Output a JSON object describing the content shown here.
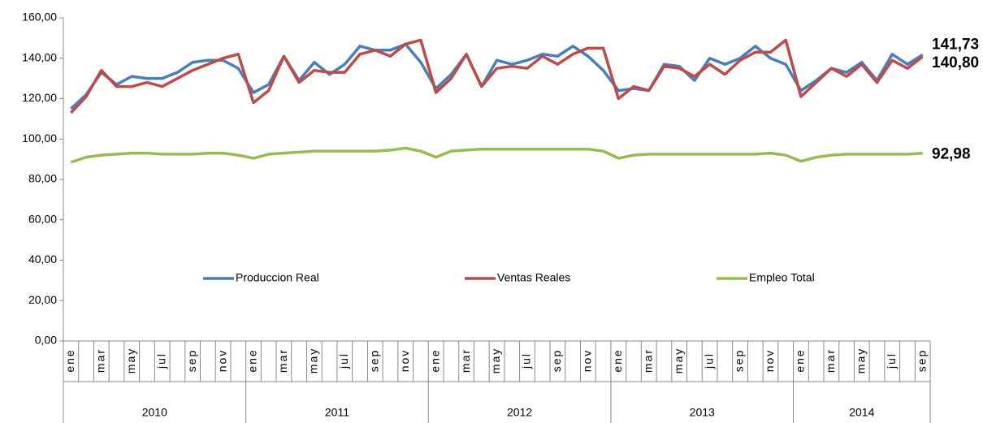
{
  "chart_data": {
    "type": "line",
    "categories": [
      "ene",
      null,
      "mar",
      null,
      "may",
      null,
      "jul",
      null,
      "sep",
      null,
      "nov",
      null,
      "ene",
      null,
      "mar",
      null,
      "may",
      null,
      "jul",
      null,
      "sep",
      null,
      "nov",
      null,
      "ene",
      null,
      "mar",
      null,
      "may",
      null,
      "jul",
      null,
      "sep",
      null,
      "nov",
      null,
      "ene",
      null,
      "mar",
      null,
      "may",
      null,
      "jul",
      null,
      "sep",
      null,
      "nov",
      null,
      "ene",
      null,
      "mar",
      null,
      "may",
      null,
      "jul",
      null,
      "sep"
    ],
    "years": [
      "2010",
      "2011",
      "2012",
      "2013",
      "2014"
    ],
    "series": [
      {
        "name": "Produccion Real",
        "color": "#4a7ebb",
        "values": [
          115,
          122,
          133,
          127,
          131,
          130,
          130,
          133,
          138,
          139,
          139,
          135,
          123,
          127,
          141,
          129,
          138,
          132,
          137,
          146,
          144,
          144,
          147,
          138,
          125,
          132,
          142,
          126,
          139,
          137,
          139,
          142,
          141,
          146,
          141,
          134,
          124,
          125,
          124,
          137,
          136,
          129,
          140,
          137,
          140,
          146,
          140,
          137,
          124,
          129,
          135,
          133,
          138,
          129,
          142,
          137,
          141.73
        ]
      },
      {
        "name": "Ventas Reales",
        "color": "#be4b48",
        "values": [
          113,
          121,
          134,
          126,
          126,
          128,
          126,
          130,
          134,
          137,
          140,
          142,
          118,
          124,
          141,
          128,
          134,
          133,
          133,
          142,
          144,
          141,
          147,
          149,
          123,
          130,
          142,
          126,
          135,
          136,
          135,
          141,
          137,
          142,
          145,
          145,
          120,
          126,
          124,
          136,
          135,
          131,
          137,
          132,
          139,
          143,
          143,
          149,
          121,
          128,
          135,
          131,
          137,
          128,
          139,
          135,
          140.8
        ]
      },
      {
        "name": "Empleo Total",
        "color": "#98b954",
        "values": [
          88.5,
          91,
          92,
          92.5,
          93,
          93,
          92.5,
          92.5,
          92.5,
          93,
          93,
          92,
          90.5,
          92.5,
          93,
          93.5,
          94,
          94,
          94,
          94,
          94,
          94.5,
          95.5,
          94,
          91,
          94,
          94.5,
          95,
          95,
          95,
          95,
          95,
          95,
          95,
          95,
          94,
          90.5,
          92,
          92.5,
          92.5,
          92.5,
          92.5,
          92.5,
          92.5,
          92.5,
          92.5,
          93,
          92,
          89,
          91,
          92,
          92.5,
          92.5,
          92.5,
          92.5,
          92.5,
          92.98
        ]
      }
    ],
    "annotations": [
      {
        "text": "141,73",
        "value": 141.73,
        "color": "#2e75b6"
      },
      {
        "text": "140,80",
        "value": 140.8,
        "color": "#e0201b"
      },
      {
        "text": "92,98",
        "value": 92.98,
        "color": "#4f6228"
      }
    ],
    "ylim": [
      0,
      160
    ],
    "yticks": [
      {
        "value": 0,
        "label": "0,00"
      },
      {
        "value": 20,
        "label": "20,00"
      },
      {
        "value": 40,
        "label": "40,00"
      },
      {
        "value": 60,
        "label": "60,00"
      },
      {
        "value": 80,
        "label": "80,00"
      },
      {
        "value": 100,
        "label": "100,00"
      },
      {
        "value": 120,
        "label": "120,00"
      },
      {
        "value": 140,
        "label": "140,00"
      },
      {
        "value": 160,
        "label": "160,00"
      }
    ],
    "legend": "center"
  }
}
